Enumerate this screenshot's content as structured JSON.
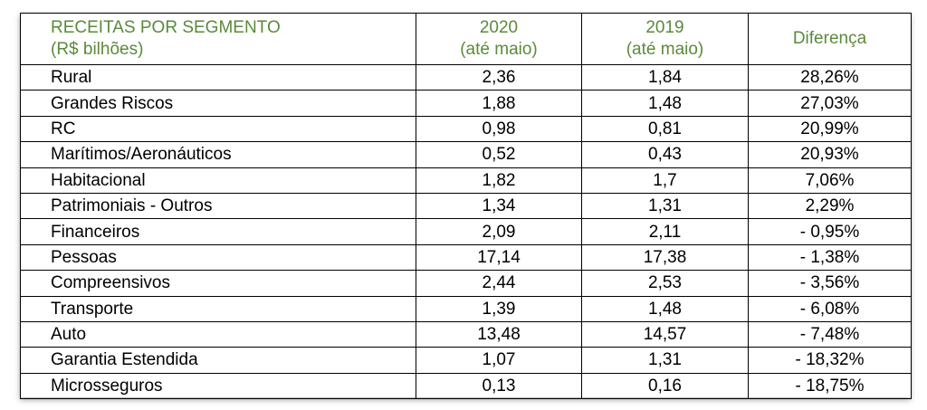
{
  "table": {
    "headers": {
      "segment": [
        "RECEITAS POR SEGMENTO",
        "(R$ bilhões)"
      ],
      "y2020": [
        "2020",
        "(até maio)"
      ],
      "y2019": [
        "2019",
        "(até maio)"
      ],
      "diff": "Diferença"
    },
    "rows": [
      {
        "segment": "Rural",
        "y2020": "2,36",
        "y2019": "1,84",
        "diff": "28,26%"
      },
      {
        "segment": "Grandes Riscos",
        "y2020": "1,88",
        "y2019": "1,48",
        "diff": "27,03%"
      },
      {
        "segment": "RC",
        "y2020": "0,98",
        "y2019": "0,81",
        "diff": "20,99%"
      },
      {
        "segment": "Marítimos/Aeronáuticos",
        "y2020": "0,52",
        "y2019": "0,43",
        "diff": "20,93%"
      },
      {
        "segment": "Habitacional",
        "y2020": "1,82",
        "y2019": "1,7",
        "diff": "7,06%"
      },
      {
        "segment": "Patrimoniais - Outros",
        "y2020": "1,34",
        "y2019": "1,31",
        "diff": "2,29%"
      },
      {
        "segment": "Financeiros",
        "y2020": "2,09",
        "y2019": "2,11",
        "diff": "- 0,95%"
      },
      {
        "segment": "Pessoas",
        "y2020": "17,14",
        "y2019": "17,38",
        "diff": "- 1,38%"
      },
      {
        "segment": "Compreensivos",
        "y2020": "2,44",
        "y2019": "2,53",
        "diff": "- 3,56%"
      },
      {
        "segment": "Transporte",
        "y2020": "1,39",
        "y2019": "1,48",
        "diff": "- 6,08%"
      },
      {
        "segment": "Auto",
        "y2020": "13,48",
        "y2019": "14,57",
        "diff": "- 7,48%"
      },
      {
        "segment": "Garantia Estendida",
        "y2020": "1,07",
        "y2019": "1,31",
        "diff": "- 18,32%"
      },
      {
        "segment": "Microsseguros",
        "y2020": "0,13",
        "y2019": "0,16",
        "diff": "- 18,75%"
      }
    ]
  },
  "colors": {
    "header_text": "#5a8a3a",
    "border": "#000000"
  }
}
